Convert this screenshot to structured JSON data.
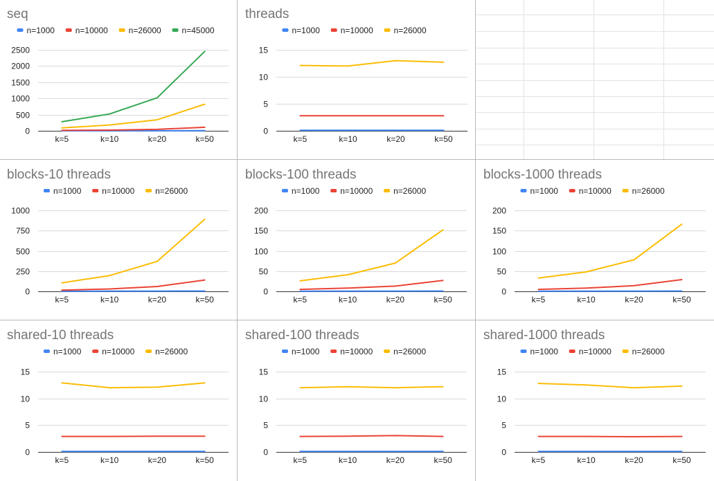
{
  "colors": {
    "n=1000": "#4285f4",
    "n=10000": "#ea4335",
    "n=26000": "#fbbc04",
    "n=45000": "#34a853"
  },
  "chart_data": [
    {
      "type": "line",
      "title": "seq",
      "categories": [
        "k=5",
        "k=10",
        "k=20",
        "k=50"
      ],
      "ylim": [
        0,
        2500
      ],
      "yticks": [
        0,
        500,
        1000,
        1500,
        2000,
        2500
      ],
      "grid": true,
      "legend": "top",
      "series": [
        {
          "name": "n=1000",
          "values": [
            1,
            2,
            3,
            5
          ]
        },
        {
          "name": "n=10000",
          "values": [
            12,
            22,
            45,
            110
          ]
        },
        {
          "name": "n=26000",
          "values": [
            90,
            180,
            340,
            820
          ]
        },
        {
          "name": "n=45000",
          "values": [
            280,
            520,
            1020,
            2450
          ]
        }
      ]
    },
    {
      "type": "line",
      "title": "threads",
      "categories": [
        "k=5",
        "k=10",
        "k=20",
        "k=50"
      ],
      "ylim": [
        0,
        15
      ],
      "yticks": [
        0,
        5,
        10,
        15
      ],
      "grid": true,
      "legend": "top",
      "series": [
        {
          "name": "n=1000",
          "values": [
            0.1,
            0.1,
            0.1,
            0.1
          ]
        },
        {
          "name": "n=10000",
          "values": [
            2.8,
            2.8,
            2.8,
            2.8
          ]
        },
        {
          "name": "n=26000",
          "values": [
            12.1,
            12.0,
            13.0,
            12.7
          ]
        }
      ]
    },
    {
      "type": "line",
      "title": "blocks-10 threads",
      "categories": [
        "k=5",
        "k=10",
        "k=20",
        "k=50"
      ],
      "ylim": [
        0,
        1000
      ],
      "yticks": [
        0,
        250,
        500,
        750,
        1000
      ],
      "grid": true,
      "legend": "top",
      "series": [
        {
          "name": "n=1000",
          "values": [
            2,
            3,
            3,
            4
          ]
        },
        {
          "name": "n=10000",
          "values": [
            15,
            30,
            60,
            140
          ]
        },
        {
          "name": "n=26000",
          "values": [
            105,
            195,
            370,
            890
          ]
        }
      ]
    },
    {
      "type": "line",
      "title": "blocks-100 threads",
      "categories": [
        "k=5",
        "k=10",
        "k=20",
        "k=50"
      ],
      "ylim": [
        0,
        200
      ],
      "yticks": [
        0,
        50,
        100,
        150,
        200
      ],
      "grid": true,
      "legend": "top",
      "series": [
        {
          "name": "n=1000",
          "values": [
            0.5,
            0.6,
            0.7,
            0.9
          ]
        },
        {
          "name": "n=10000",
          "values": [
            5,
            8,
            13,
            27
          ]
        },
        {
          "name": "n=26000",
          "values": [
            26,
            41,
            70,
            152
          ]
        }
      ]
    },
    {
      "type": "line",
      "title": "blocks-1000 threads",
      "categories": [
        "k=5",
        "k=10",
        "k=20",
        "k=50"
      ],
      "ylim": [
        0,
        200
      ],
      "yticks": [
        0,
        50,
        100,
        150,
        200
      ],
      "grid": true,
      "legend": "top",
      "series": [
        {
          "name": "n=1000",
          "values": [
            0.5,
            0.6,
            0.7,
            0.9
          ]
        },
        {
          "name": "n=10000",
          "values": [
            5,
            8,
            14,
            29
          ]
        },
        {
          "name": "n=26000",
          "values": [
            33,
            48,
            78,
            166
          ]
        }
      ]
    },
    {
      "type": "line",
      "title": "shared-10 threads",
      "categories": [
        "k=5",
        "k=10",
        "k=20",
        "k=50"
      ],
      "ylim": [
        0,
        15
      ],
      "yticks": [
        0,
        5,
        10,
        15
      ],
      "grid": true,
      "legend": "top",
      "series": [
        {
          "name": "n=1000",
          "values": [
            0.1,
            0.1,
            0.1,
            0.1
          ]
        },
        {
          "name": "n=10000",
          "values": [
            2.9,
            2.9,
            2.95,
            2.95
          ]
        },
        {
          "name": "n=26000",
          "values": [
            12.9,
            12.0,
            12.1,
            12.9
          ]
        }
      ]
    },
    {
      "type": "line",
      "title": "shared-100 threads",
      "categories": [
        "k=5",
        "k=10",
        "k=20",
        "k=50"
      ],
      "ylim": [
        0,
        15
      ],
      "yticks": [
        0,
        5,
        10,
        15
      ],
      "grid": true,
      "legend": "top",
      "series": [
        {
          "name": "n=1000",
          "values": [
            0.1,
            0.1,
            0.1,
            0.1
          ]
        },
        {
          "name": "n=10000",
          "values": [
            2.9,
            2.95,
            3.05,
            2.9
          ]
        },
        {
          "name": "n=26000",
          "values": [
            12.0,
            12.2,
            12.0,
            12.2
          ]
        }
      ]
    },
    {
      "type": "line",
      "title": "shared-1000 threads",
      "categories": [
        "k=5",
        "k=10",
        "k=20",
        "k=50"
      ],
      "ylim": [
        0,
        15
      ],
      "yticks": [
        0,
        5,
        10,
        15
      ],
      "grid": true,
      "legend": "top",
      "series": [
        {
          "name": "n=1000",
          "values": [
            0.1,
            0.1,
            0.1,
            0.1
          ]
        },
        {
          "name": "n=10000",
          "values": [
            2.9,
            2.9,
            2.85,
            2.9
          ]
        },
        {
          "name": "n=26000",
          "values": [
            12.8,
            12.5,
            12.0,
            12.3
          ]
        }
      ]
    }
  ]
}
